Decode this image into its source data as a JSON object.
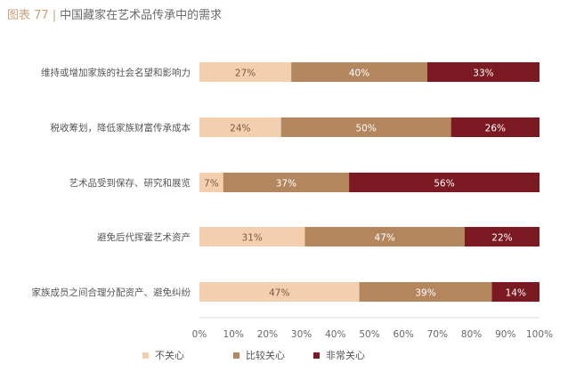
{
  "chart_data": {
    "type": "bar",
    "stacked": true,
    "orientation": "horizontal",
    "figure_label": "图表 77",
    "title": "中国藏家在艺术品传承中的需求",
    "categories": [
      "维持或增加家族的社会名望和影响力",
      "税收筹划，降低家族财富传承成本",
      "艺术品受到保存、研究和展览",
      "避免后代挥霍艺术资产",
      "家族成员之间合理分配资产、避免纠纷"
    ],
    "series": [
      {
        "name": "不关心",
        "values": [
          27,
          24,
          7,
          31,
          47
        ],
        "color": "#f2cfae"
      },
      {
        "name": "比较关心",
        "values": [
          40,
          50,
          37,
          47,
          39
        ],
        "color": "#b4865e"
      },
      {
        "name": "非常关心",
        "values": [
          33,
          26,
          56,
          22,
          14
        ],
        "color": "#7b1a22"
      }
    ],
    "value_labels": [
      [
        "27%",
        "40%",
        "33%"
      ],
      [
        "24%",
        "50%",
        "26%"
      ],
      [
        "7%",
        "37%",
        "56%"
      ],
      [
        "31%",
        "47%",
        "22%"
      ],
      [
        "47%",
        "39%",
        "14%"
      ]
    ],
    "xlim": [
      0,
      100
    ],
    "xticks": [
      "0%",
      "10%",
      "20%",
      "30%",
      "40%",
      "50%",
      "60%",
      "70%",
      "80%",
      "90%",
      "100%"
    ],
    "xlabel": "",
    "ylabel": "",
    "grid": false,
    "legend_position": "bottom-center"
  }
}
